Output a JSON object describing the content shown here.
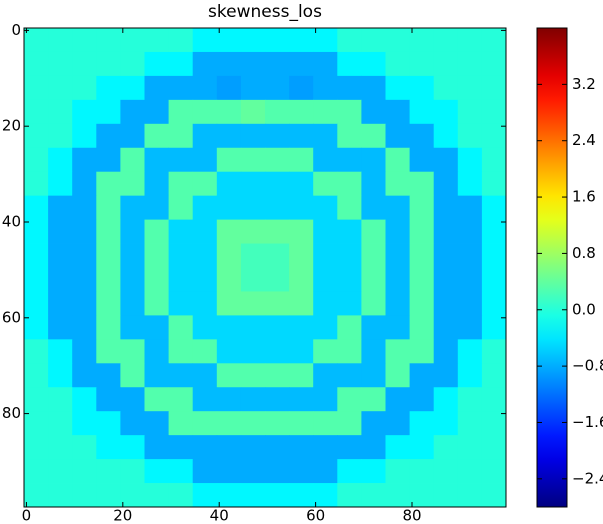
{
  "chart_data": {
    "type": "heatmap",
    "title": "skewness_los",
    "colormap": "jet",
    "xlim": [
      -0.5,
      99.5
    ],
    "ylim": [
      99.5,
      -0.5
    ],
    "xticks": [
      0,
      20,
      40,
      60,
      80
    ],
    "yticks": [
      0,
      20,
      40,
      60,
      80
    ],
    "colorbar": {
      "lim": [
        -2.8,
        4.0
      ],
      "ticks": [
        {
          "value": -2.4,
          "label": "−2.4"
        },
        {
          "value": -1.6,
          "label": "−1.6"
        },
        {
          "value": -0.8,
          "label": "−0.8"
        },
        {
          "value": 0,
          "label": "0.0"
        },
        0.8,
        1.6,
        2.4,
        3.2
      ]
    },
    "z": [
      [
        0,
        0,
        0,
        0,
        0,
        0,
        0,
        -0.3,
        -0.3,
        -0.3,
        -0.3,
        -0.3,
        -0.3,
        0,
        0,
        0,
        0,
        0,
        0,
        0
      ],
      [
        0,
        0,
        0,
        0,
        0,
        -0.3,
        -0.3,
        -0.8,
        -0.8,
        -0.8,
        -0.8,
        -0.8,
        -0.8,
        -0.3,
        -0.3,
        0,
        0,
        0,
        0,
        0
      ],
      [
        0,
        0,
        0,
        -0.3,
        -0.3,
        -0.8,
        -0.8,
        -0.8,
        -0.9,
        -0.8,
        -0.8,
        -0.9,
        -0.8,
        -0.8,
        -0.8,
        -0.3,
        -0.3,
        0,
        0,
        0
      ],
      [
        0,
        0,
        -0.3,
        -0.3,
        -0.8,
        -0.8,
        0.3,
        0.3,
        0.3,
        0.4,
        0.3,
        0.3,
        0.3,
        0.3,
        -0.8,
        -0.8,
        -0.3,
        -0.3,
        0,
        0
      ],
      [
        0,
        0,
        -0.3,
        -0.8,
        -0.8,
        0.3,
        0.3,
        -0.7,
        -0.7,
        -0.7,
        -0.7,
        -0.7,
        -0.7,
        0.3,
        0.3,
        -0.8,
        -0.8,
        -0.3,
        0,
        0
      ],
      [
        0,
        -0.3,
        -0.8,
        -0.8,
        0.3,
        -0.7,
        -0.7,
        -0.7,
        0.3,
        0.3,
        0.3,
        0.3,
        -0.7,
        -0.7,
        -0.7,
        0.3,
        -0.8,
        -0.8,
        -0.3,
        0
      ],
      [
        0,
        -0.3,
        -0.8,
        0.3,
        0.3,
        -0.7,
        0.3,
        0.3,
        -0.5,
        -0.5,
        -0.5,
        -0.5,
        0.3,
        0.3,
        -0.7,
        0.3,
        0.3,
        -0.8,
        -0.3,
        0
      ],
      [
        -0.3,
        -0.8,
        -0.8,
        0.3,
        -0.7,
        -0.7,
        0.3,
        -0.5,
        -0.5,
        -0.5,
        -0.5,
        -0.5,
        -0.5,
        0.3,
        -0.7,
        -0.7,
        0.3,
        -0.8,
        -0.8,
        -0.3
      ],
      [
        -0.3,
        -0.8,
        -0.8,
        0.3,
        -0.7,
        0.3,
        -0.5,
        -0.5,
        0.4,
        0.4,
        0.4,
        0.4,
        -0.5,
        -0.5,
        0.3,
        -0.7,
        0.3,
        -0.8,
        -0.8,
        -0.3
      ],
      [
        -0.3,
        -0.8,
        -0.8,
        0.3,
        -0.7,
        0.3,
        -0.5,
        -0.5,
        0.4,
        0.2,
        0.2,
        0.4,
        -0.5,
        -0.5,
        0.3,
        -0.7,
        0.3,
        -0.8,
        -0.8,
        -0.3
      ],
      [
        -0.3,
        -0.8,
        -0.8,
        0.3,
        -0.7,
        0.3,
        -0.5,
        -0.5,
        0.4,
        0.2,
        0.2,
        0.4,
        -0.5,
        -0.5,
        0.3,
        -0.7,
        0.3,
        -0.8,
        -0.8,
        -0.3
      ],
      [
        -0.3,
        -0.8,
        -0.8,
        0.3,
        -0.7,
        0.3,
        -0.5,
        -0.5,
        0.4,
        0.4,
        0.4,
        0.4,
        -0.5,
        -0.5,
        0.3,
        -0.7,
        0.3,
        -0.8,
        -0.8,
        -0.3
      ],
      [
        -0.3,
        -0.8,
        -0.8,
        0.3,
        -0.7,
        -0.7,
        0.3,
        -0.5,
        -0.5,
        -0.5,
        -0.5,
        -0.5,
        -0.5,
        0.3,
        -0.7,
        -0.7,
        0.3,
        -0.8,
        -0.8,
        -0.3
      ],
      [
        0,
        -0.3,
        -0.8,
        0.3,
        0.3,
        -0.7,
        0.3,
        0.3,
        -0.5,
        -0.5,
        -0.5,
        -0.5,
        0.3,
        0.3,
        -0.7,
        0.3,
        0.3,
        -0.8,
        -0.3,
        0
      ],
      [
        0,
        -0.3,
        -0.8,
        -0.8,
        0.3,
        -0.7,
        -0.7,
        -0.7,
        0.3,
        0.3,
        0.3,
        0.3,
        -0.7,
        -0.7,
        -0.7,
        0.3,
        -0.8,
        -0.8,
        -0.3,
        0
      ],
      [
        0,
        0,
        -0.3,
        -0.8,
        -0.8,
        0.3,
        0.3,
        -0.7,
        -0.7,
        -0.7,
        -0.7,
        -0.7,
        -0.7,
        0.3,
        0.3,
        -0.8,
        -0.8,
        -0.3,
        0,
        0
      ],
      [
        0,
        0,
        -0.3,
        -0.3,
        -0.8,
        -0.8,
        0.3,
        0.3,
        0.3,
        0.3,
        0.3,
        0.3,
        0.3,
        0.3,
        -0.8,
        -0.8,
        -0.3,
        -0.3,
        0,
        0
      ],
      [
        0,
        0,
        0,
        -0.3,
        -0.3,
        -0.8,
        -0.8,
        -0.8,
        -0.8,
        -0.8,
        -0.8,
        -0.8,
        -0.8,
        -0.8,
        -0.8,
        -0.3,
        -0.3,
        0,
        0,
        0
      ],
      [
        0,
        0,
        0,
        0,
        0,
        -0.3,
        -0.3,
        -0.8,
        -0.8,
        -0.8,
        -0.8,
        -0.8,
        -0.8,
        -0.3,
        -0.3,
        0,
        0,
        0,
        0,
        0
      ],
      [
        0,
        0,
        0,
        0,
        0,
        0,
        0,
        -0.3,
        -0.3,
        -0.3,
        -0.3,
        -0.3,
        -0.3,
        0,
        0,
        0,
        0,
        0,
        0,
        0
      ]
    ]
  }
}
